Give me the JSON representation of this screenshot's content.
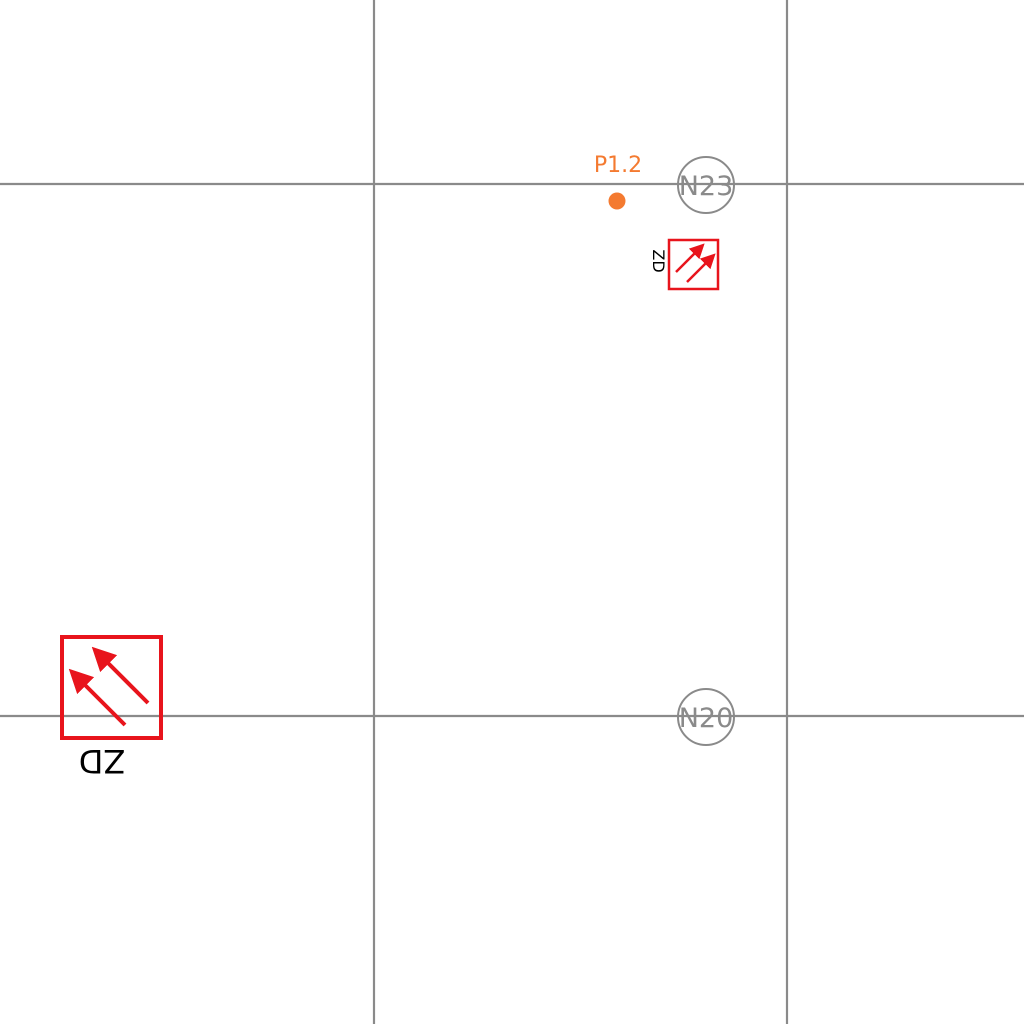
{
  "map": {
    "background": "#ffffff",
    "grid_color": "#8a8a8a",
    "nodes": [
      {
        "id": "N23",
        "label": "N23"
      },
      {
        "id": "N20",
        "label": "N20"
      }
    ],
    "point": {
      "label": "P1.2",
      "color": "#f47a30",
      "icon": "circle-marker-icon"
    },
    "symbols": [
      {
        "id": "zd-large",
        "label": "ZD",
        "color": "#e8141c",
        "icon": "double-arrow-icon",
        "orientation": "rotated-180"
      },
      {
        "id": "zd-small",
        "label": "ZD",
        "color": "#e8141c",
        "icon": "double-arrow-icon",
        "orientation": "rotated-90"
      }
    ]
  }
}
